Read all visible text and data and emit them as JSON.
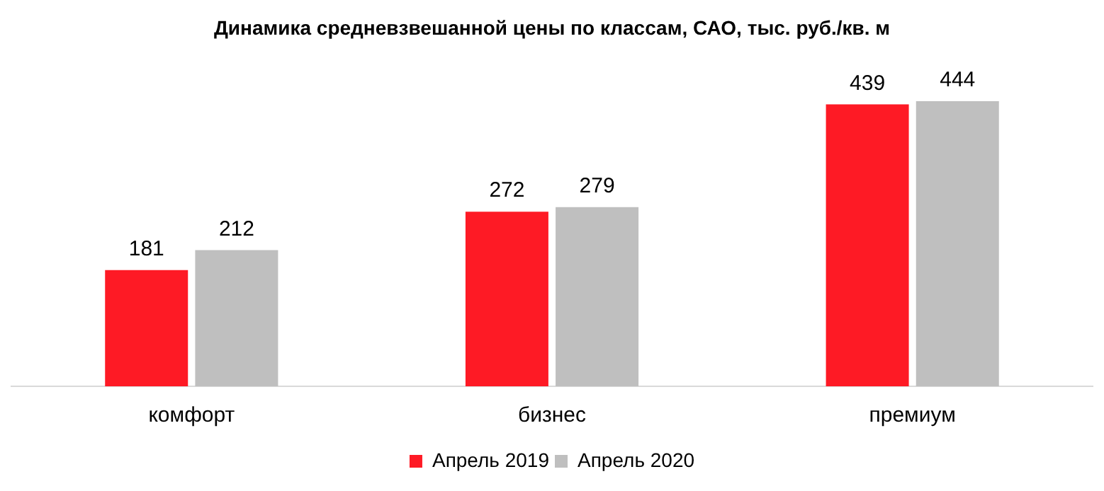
{
  "chart_data": {
    "type": "bar",
    "title": "Динамика средневзвешанной цены по классам, САО, тыс. руб./кв. м",
    "categories": [
      "комфорт",
      "бизнес",
      "премиум"
    ],
    "series": [
      {
        "name": "Апрель 2019",
        "color": "#fe1a25",
        "values": [
          181,
          272,
          439
        ]
      },
      {
        "name": "Апрель 2020",
        "color": "#bfbfbf",
        "values": [
          212,
          279,
          444
        ]
      }
    ],
    "data_labels": true,
    "legend": "bottom",
    "grid": false
  }
}
